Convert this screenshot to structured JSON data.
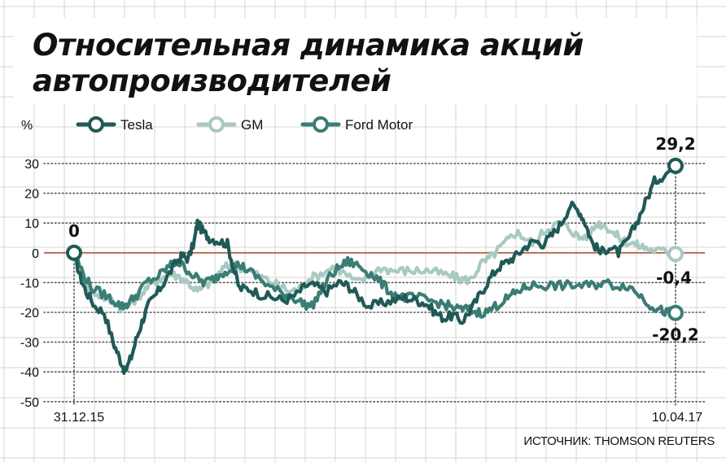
{
  "title_lines": [
    "Относительная динамика акций",
    "автопроизводителей"
  ],
  "source": "ИСТОЧНИК: THOMSON REUTERS",
  "colors": {
    "tesla": "#1f5a57",
    "gm": "#a9c9c3",
    "ford": "#3a7d75",
    "zero_line": "#b5654a",
    "grid": "#c8c8c8"
  },
  "chart_data": {
    "type": "line",
    "title": "Относительная динамика акций автопроизводителей",
    "ylabel": "%",
    "ylim": [
      -50,
      30
    ],
    "yticks": [
      30,
      20,
      10,
      0,
      -10,
      -20,
      -30,
      -40,
      -50
    ],
    "x_start_label": "31.12.15",
    "x_end_label": "10.04.17",
    "legend_position": "top",
    "start_value_label": "0",
    "series": [
      {
        "name": "Tesla",
        "color": "#1f5a57",
        "end_label": "29,2",
        "points": [
          [
            0,
            0
          ],
          [
            0.01,
            -8
          ],
          [
            0.02,
            -13
          ],
          [
            0.035,
            -18
          ],
          [
            0.05,
            -20
          ],
          [
            0.065,
            -30
          ],
          [
            0.075,
            -35
          ],
          [
            0.085,
            -40
          ],
          [
            0.095,
            -35
          ],
          [
            0.105,
            -28
          ],
          [
            0.115,
            -22
          ],
          [
            0.125,
            -17
          ],
          [
            0.14,
            -13
          ],
          [
            0.155,
            -8
          ],
          [
            0.17,
            -3
          ],
          [
            0.18,
            -1
          ],
          [
            0.19,
            -2
          ],
          [
            0.2,
            4
          ],
          [
            0.205,
            10
          ],
          [
            0.215,
            7
          ],
          [
            0.225,
            5
          ],
          [
            0.24,
            4
          ],
          [
            0.255,
            3
          ],
          [
            0.265,
            -5
          ],
          [
            0.275,
            -12
          ],
          [
            0.29,
            -12
          ],
          [
            0.31,
            -14
          ],
          [
            0.33,
            -15
          ],
          [
            0.35,
            -16
          ],
          [
            0.37,
            -14
          ],
          [
            0.385,
            -11
          ],
          [
            0.4,
            -11
          ],
          [
            0.42,
            -13
          ],
          [
            0.44,
            -10
          ],
          [
            0.455,
            -11
          ],
          [
            0.47,
            -14
          ],
          [
            0.49,
            -18
          ],
          [
            0.51,
            -17
          ],
          [
            0.53,
            -16
          ],
          [
            0.55,
            -15
          ],
          [
            0.57,
            -16
          ],
          [
            0.585,
            -17
          ],
          [
            0.6,
            -20
          ],
          [
            0.615,
            -22
          ],
          [
            0.63,
            -21
          ],
          [
            0.645,
            -23
          ],
          [
            0.66,
            -19
          ],
          [
            0.675,
            -14
          ],
          [
            0.69,
            -9
          ],
          [
            0.705,
            -5
          ],
          [
            0.72,
            -3
          ],
          [
            0.735,
            -1
          ],
          [
            0.75,
            2
          ],
          [
            0.765,
            4
          ],
          [
            0.78,
            3
          ],
          [
            0.795,
            6
          ],
          [
            0.81,
            10
          ],
          [
            0.825,
            16
          ],
          [
            0.84,
            14
          ],
          [
            0.85,
            10
          ],
          [
            0.86,
            4
          ],
          [
            0.875,
            0
          ],
          [
            0.89,
            2
          ],
          [
            0.905,
            0
          ],
          [
            0.92,
            4
          ],
          [
            0.935,
            10
          ],
          [
            0.95,
            17
          ],
          [
            0.965,
            24
          ],
          [
            0.98,
            26
          ],
          [
            1.0,
            29.2
          ]
        ]
      },
      {
        "name": "GM",
        "color": "#a9c9c3",
        "end_label": "-0,4",
        "points": [
          [
            0,
            0
          ],
          [
            0.015,
            -10
          ],
          [
            0.03,
            -13
          ],
          [
            0.05,
            -15
          ],
          [
            0.065,
            -16
          ],
          [
            0.08,
            -19
          ],
          [
            0.095,
            -17
          ],
          [
            0.11,
            -14
          ],
          [
            0.125,
            -11
          ],
          [
            0.14,
            -9
          ],
          [
            0.16,
            -7
          ],
          [
            0.175,
            -8
          ],
          [
            0.19,
            -10
          ],
          [
            0.205,
            -13
          ],
          [
            0.22,
            -11
          ],
          [
            0.235,
            -8
          ],
          [
            0.25,
            -5
          ],
          [
            0.265,
            -4
          ],
          [
            0.28,
            -5
          ],
          [
            0.3,
            -7
          ],
          [
            0.32,
            -9
          ],
          [
            0.34,
            -11
          ],
          [
            0.36,
            -13
          ],
          [
            0.375,
            -12
          ],
          [
            0.39,
            -9
          ],
          [
            0.41,
            -7
          ],
          [
            0.43,
            -5
          ],
          [
            0.45,
            -7
          ],
          [
            0.47,
            -10
          ],
          [
            0.49,
            -8
          ],
          [
            0.51,
            -5
          ],
          [
            0.53,
            -6
          ],
          [
            0.55,
            -6
          ],
          [
            0.57,
            -6
          ],
          [
            0.59,
            -6
          ],
          [
            0.61,
            -7
          ],
          [
            0.63,
            -8
          ],
          [
            0.645,
            -9
          ],
          [
            0.66,
            -9
          ],
          [
            0.675,
            -4
          ],
          [
            0.69,
            -2
          ],
          [
            0.705,
            1
          ],
          [
            0.72,
            4
          ],
          [
            0.735,
            7
          ],
          [
            0.75,
            5
          ],
          [
            0.765,
            3
          ],
          [
            0.78,
            7
          ],
          [
            0.795,
            9
          ],
          [
            0.81,
            10
          ],
          [
            0.825,
            8
          ],
          [
            0.84,
            5
          ],
          [
            0.855,
            6
          ],
          [
            0.87,
            10
          ],
          [
            0.885,
            9
          ],
          [
            0.9,
            6
          ],
          [
            0.915,
            4
          ],
          [
            0.93,
            3
          ],
          [
            0.945,
            2
          ],
          [
            0.96,
            1
          ],
          [
            0.98,
            0.5
          ],
          [
            1.0,
            -0.4
          ]
        ]
      },
      {
        "name": "Ford Motor",
        "color": "#3a7d75",
        "end_label": "-20,2",
        "points": [
          [
            0,
            0
          ],
          [
            0.015,
            -7
          ],
          [
            0.03,
            -12
          ],
          [
            0.05,
            -14
          ],
          [
            0.065,
            -16
          ],
          [
            0.08,
            -18
          ],
          [
            0.09,
            -17
          ],
          [
            0.105,
            -14
          ],
          [
            0.12,
            -10
          ],
          [
            0.14,
            -8
          ],
          [
            0.155,
            -5
          ],
          [
            0.17,
            -3
          ],
          [
            0.185,
            -5
          ],
          [
            0.2,
            -8
          ],
          [
            0.215,
            -10
          ],
          [
            0.23,
            -9
          ],
          [
            0.245,
            -7
          ],
          [
            0.26,
            -5
          ],
          [
            0.275,
            -4
          ],
          [
            0.29,
            -6
          ],
          [
            0.31,
            -9
          ],
          [
            0.33,
            -12
          ],
          [
            0.35,
            -14
          ],
          [
            0.365,
            -15
          ],
          [
            0.38,
            -17
          ],
          [
            0.395,
            -18
          ],
          [
            0.41,
            -13
          ],
          [
            0.425,
            -8
          ],
          [
            0.44,
            -5
          ],
          [
            0.455,
            -3
          ],
          [
            0.47,
            -4
          ],
          [
            0.485,
            -6
          ],
          [
            0.5,
            -8
          ],
          [
            0.515,
            -11
          ],
          [
            0.53,
            -14
          ],
          [
            0.55,
            -15
          ],
          [
            0.57,
            -15
          ],
          [
            0.59,
            -16
          ],
          [
            0.61,
            -17
          ],
          [
            0.625,
            -18
          ],
          [
            0.64,
            -19
          ],
          [
            0.655,
            -19
          ],
          [
            0.67,
            -20
          ],
          [
            0.685,
            -20
          ],
          [
            0.7,
            -18
          ],
          [
            0.715,
            -16
          ],
          [
            0.73,
            -14
          ],
          [
            0.745,
            -12
          ],
          [
            0.76,
            -11
          ],
          [
            0.78,
            -11
          ],
          [
            0.8,
            -11
          ],
          [
            0.82,
            -11
          ],
          [
            0.84,
            -11
          ],
          [
            0.86,
            -11
          ],
          [
            0.88,
            -10
          ],
          [
            0.9,
            -11
          ],
          [
            0.92,
            -11
          ],
          [
            0.94,
            -14
          ],
          [
            0.955,
            -17
          ],
          [
            0.97,
            -19
          ],
          [
            0.985,
            -20
          ],
          [
            1.0,
            -20.2
          ]
        ]
      }
    ]
  }
}
